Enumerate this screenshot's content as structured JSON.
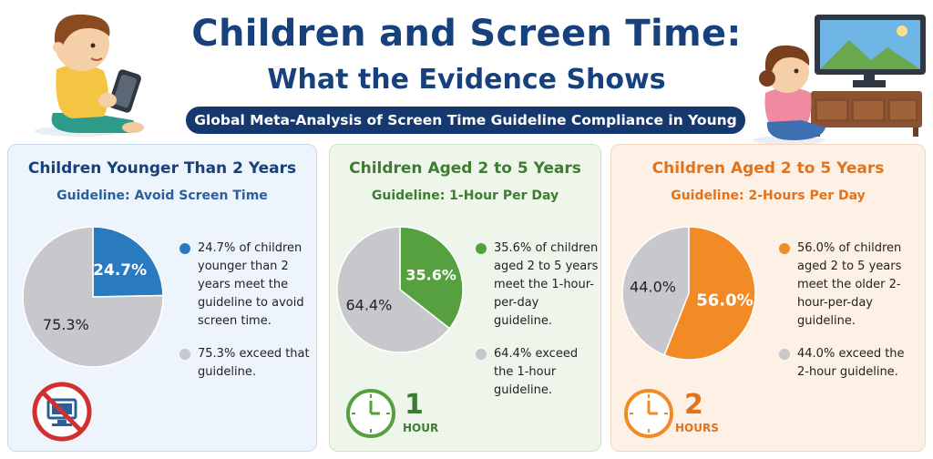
{
  "header": {
    "title": "Children and Screen Time:",
    "subtitle": "What the Evidence Shows",
    "banner": "Global Meta-Analysis of Screen Time Guideline Compliance in Young Children"
  },
  "colors": {
    "blue": "#2a7ac0",
    "green": "#56a03f",
    "orange": "#f28a26",
    "gray": "#c8c8cc",
    "title_blue": "#16417c",
    "green_text": "#3c7d2f",
    "orange_text": "#e2731b"
  },
  "cards": [
    {
      "title": "Children Younger Than 2 Years",
      "guideline": "Guideline: Avoid Screen Time",
      "legend": [
        {
          "pct": "24.7%",
          "text": " of children younger than 2 years meet the guideline to avoid screen time."
        },
        {
          "pct": "75.3%",
          "text": " exceed that guideline."
        }
      ]
    },
    {
      "title": "Children Aged 2 to 5 Years",
      "guideline": "Guideline: 1-Hour Per Day",
      "legend": [
        {
          "pct": "35.6%",
          "text": " of children aged 2 to 5 years meet the 1-hour-per-day guideline."
        },
        {
          "pct": "64.4%",
          "text": " exceed the 1-hour guideline."
        }
      ],
      "badge_number": "1",
      "badge_unit": "HOUR"
    },
    {
      "title": "Children Aged 2 to 5 Years",
      "guideline": "Guideline: 2-Hours Per Day",
      "legend": [
        {
          "pct": "56.0%",
          "text": " of children aged 2 to 5 years meet the older 2-hour-per-day guideline."
        },
        {
          "pct": "44.0%",
          "text": " exceed the 2-hour guideline."
        }
      ],
      "badge_number": "2",
      "badge_unit": "HOURS"
    }
  ],
  "chart_data": [
    {
      "type": "pie",
      "title": "Children Younger Than 2 Years",
      "categories": [
        "Meet guideline",
        "Exceed guideline"
      ],
      "values": [
        24.7,
        75.3
      ],
      "labels": [
        "24.7%",
        "75.3%"
      ]
    },
    {
      "type": "pie",
      "title": "Children Aged 2 to 5 Years",
      "categories": [
        "Meet guideline",
        "Exceed guideline"
      ],
      "values": [
        35.6,
        64.4
      ],
      "labels": [
        "35.6%",
        "64.4%"
      ]
    },
    {
      "type": "pie",
      "title": "Children Aged 2 to 5 Years",
      "categories": [
        "Meet guideline",
        "Exceed guideline"
      ],
      "values": [
        56.0,
        44.0
      ],
      "labels": [
        "56.0%",
        "44.0%"
      ]
    }
  ]
}
